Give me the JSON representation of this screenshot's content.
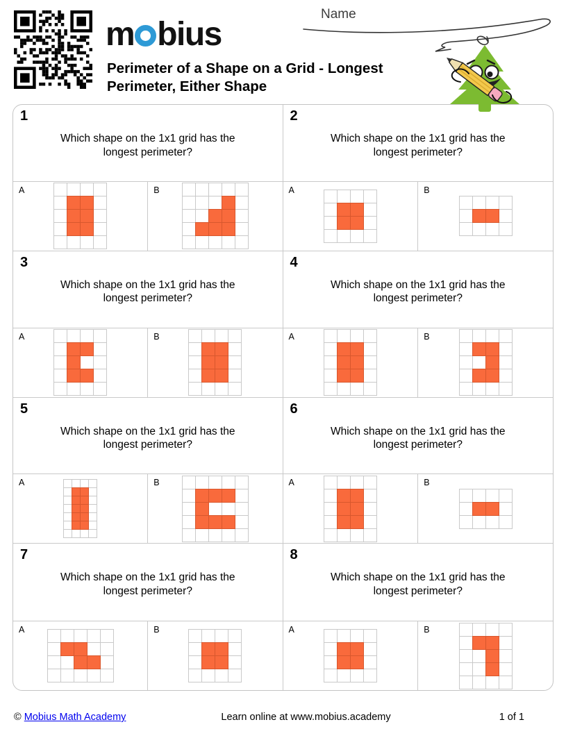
{
  "header": {
    "logo_pre": "m",
    "logo_rest": "bius",
    "title_line1": "Perimeter of a Shape on a Grid - Longest",
    "title_line2": "Perimeter, Either Shape",
    "name_label": "Name"
  },
  "question": {
    "line1": "Which shape on the 1x1 grid has the",
    "line2": "longest perimeter?"
  },
  "colors": {
    "shape_fill": "#F96A3C",
    "shape_stroke": "#D8572D",
    "grid_line": "#C9C9C9",
    "card_border": "#C4C4C4",
    "logo_accent": "#2E9AD6",
    "link_blue": "#0000EE",
    "mascot_green": "#7CBB31",
    "pencil_yellow": "#F3C84B",
    "eraser_pink": "#F6A9BE"
  },
  "problems": [
    {
      "number": "1",
      "options": [
        {
          "label": "A",
          "grid": {
            "cols": 4,
            "rows": 5,
            "cell": 19,
            "filled": [
              [
                1,
                1
              ],
              [
                2,
                1
              ],
              [
                1,
                2
              ],
              [
                2,
                2
              ],
              [
                1,
                3
              ],
              [
                2,
                3
              ]
            ]
          }
        },
        {
          "label": "B",
          "grid": {
            "cols": 5,
            "rows": 5,
            "cell": 19,
            "filled": [
              [
                3,
                1
              ],
              [
                2,
                2
              ],
              [
                3,
                2
              ],
              [
                1,
                3
              ],
              [
                2,
                3
              ],
              [
                3,
                3
              ]
            ]
          }
        }
      ]
    },
    {
      "number": "2",
      "options": [
        {
          "label": "A",
          "grid": {
            "cols": 4,
            "rows": 4,
            "cell": 19,
            "filled": [
              [
                1,
                1
              ],
              [
                2,
                1
              ],
              [
                1,
                2
              ],
              [
                2,
                2
              ]
            ]
          }
        },
        {
          "label": "B",
          "grid": {
            "cols": 4,
            "rows": 3,
            "cell": 19,
            "filled": [
              [
                1,
                1
              ],
              [
                2,
                1
              ]
            ]
          }
        }
      ]
    },
    {
      "number": "3",
      "options": [
        {
          "label": "A",
          "grid": {
            "cols": 4,
            "rows": 5,
            "cell": 19,
            "filled": [
              [
                1,
                1
              ],
              [
                2,
                1
              ],
              [
                1,
                2
              ],
              [
                1,
                3
              ],
              [
                2,
                3
              ]
            ]
          }
        },
        {
          "label": "B",
          "grid": {
            "cols": 4,
            "rows": 5,
            "cell": 19,
            "filled": [
              [
                1,
                1
              ],
              [
                2,
                1
              ],
              [
                1,
                2
              ],
              [
                2,
                2
              ],
              [
                1,
                3
              ],
              [
                2,
                3
              ]
            ]
          }
        }
      ]
    },
    {
      "number": "4",
      "options": [
        {
          "label": "A",
          "grid": {
            "cols": 4,
            "rows": 5,
            "cell": 19,
            "filled": [
              [
                1,
                1
              ],
              [
                2,
                1
              ],
              [
                1,
                2
              ],
              [
                2,
                2
              ],
              [
                1,
                3
              ],
              [
                2,
                3
              ]
            ]
          }
        },
        {
          "label": "B",
          "grid": {
            "cols": 4,
            "rows": 5,
            "cell": 19,
            "filled": [
              [
                1,
                1
              ],
              [
                2,
                1
              ],
              [
                2,
                2
              ],
              [
                1,
                3
              ],
              [
                2,
                3
              ]
            ]
          }
        }
      ]
    },
    {
      "number": "5",
      "options": [
        {
          "label": "A",
          "grid": {
            "cols": 4,
            "rows": 7,
            "cell": 12,
            "filled": [
              [
                1,
                1
              ],
              [
                2,
                1
              ],
              [
                1,
                2
              ],
              [
                2,
                2
              ],
              [
                1,
                3
              ],
              [
                2,
                3
              ],
              [
                1,
                4
              ],
              [
                2,
                4
              ],
              [
                1,
                5
              ],
              [
                2,
                5
              ]
            ]
          }
        },
        {
          "label": "B",
          "grid": {
            "cols": 5,
            "rows": 5,
            "cell": 19,
            "filled": [
              [
                1,
                1
              ],
              [
                2,
                1
              ],
              [
                3,
                1
              ],
              [
                1,
                2
              ],
              [
                1,
                3
              ],
              [
                2,
                3
              ],
              [
                3,
                3
              ]
            ]
          }
        }
      ]
    },
    {
      "number": "6",
      "options": [
        {
          "label": "A",
          "grid": {
            "cols": 4,
            "rows": 5,
            "cell": 19,
            "filled": [
              [
                1,
                1
              ],
              [
                2,
                1
              ],
              [
                1,
                2
              ],
              [
                2,
                2
              ],
              [
                1,
                3
              ],
              [
                2,
                3
              ]
            ]
          }
        },
        {
          "label": "B",
          "grid": {
            "cols": 4,
            "rows": 3,
            "cell": 19,
            "filled": [
              [
                1,
                1
              ],
              [
                2,
                1
              ]
            ]
          }
        }
      ]
    },
    {
      "number": "7",
      "options": [
        {
          "label": "A",
          "grid": {
            "cols": 5,
            "rows": 4,
            "cell": 19,
            "filled": [
              [
                1,
                1
              ],
              [
                2,
                1
              ],
              [
                2,
                2
              ],
              [
                3,
                2
              ]
            ]
          }
        },
        {
          "label": "B",
          "grid": {
            "cols": 4,
            "rows": 4,
            "cell": 19,
            "filled": [
              [
                1,
                1
              ],
              [
                2,
                1
              ],
              [
                1,
                2
              ],
              [
                2,
                2
              ]
            ]
          }
        }
      ]
    },
    {
      "number": "8",
      "options": [
        {
          "label": "A",
          "grid": {
            "cols": 4,
            "rows": 4,
            "cell": 19,
            "filled": [
              [
                1,
                1
              ],
              [
                2,
                1
              ],
              [
                1,
                2
              ],
              [
                2,
                2
              ]
            ]
          }
        },
        {
          "label": "B",
          "grid": {
            "cols": 4,
            "rows": 5,
            "cell": 19,
            "filled": [
              [
                1,
                1
              ],
              [
                2,
                1
              ],
              [
                2,
                2
              ],
              [
                2,
                3
              ]
            ]
          }
        }
      ]
    }
  ],
  "footer": {
    "copyright_symbol": "©",
    "link_text": "Mobius Math Academy",
    "center_text": "Learn online at www.mobius.academy",
    "page_text": "1 of 1"
  }
}
